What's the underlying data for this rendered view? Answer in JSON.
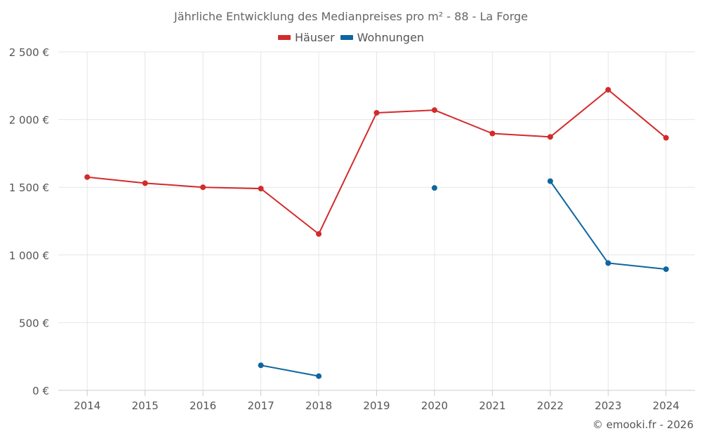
{
  "chart_data": {
    "type": "line",
    "title": "Jährliche Entwicklung des Medianpreises pro m² - 88 - La Forge",
    "categories": [
      "2014",
      "2015",
      "2016",
      "2017",
      "2018",
      "2019",
      "2020",
      "2021",
      "2022",
      "2023",
      "2024"
    ],
    "ylim": [
      0,
      2500
    ],
    "yticks": [
      0,
      500,
      1000,
      1500,
      2000,
      2500
    ],
    "ytick_labels": [
      "0 €",
      "500 €",
      "1 000 €",
      "1 500 €",
      "2 000 €",
      "2 500 €"
    ],
    "xlabel": "",
    "ylabel": "",
    "legend_position": "top-center",
    "grid": true,
    "series": [
      {
        "name": "Häuser",
        "color": "#d32a2a",
        "values": [
          1575,
          1530,
          1500,
          1490,
          1155,
          2050,
          2070,
          1897,
          1872,
          2220,
          1865
        ]
      },
      {
        "name": "Wohnungen",
        "color": "#0e66a0",
        "values": [
          null,
          null,
          null,
          185,
          105,
          null,
          1495,
          null,
          1545,
          940,
          895
        ]
      }
    ]
  },
  "credits": "© emooki.fr - 2026"
}
